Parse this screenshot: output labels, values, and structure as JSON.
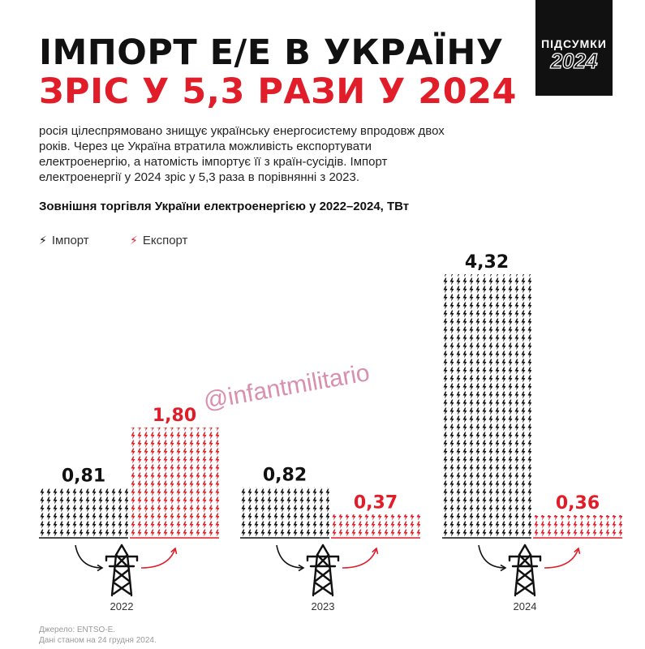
{
  "header": {
    "title_line1": "ІМПОРТ Е/Е В УКРАЇНУ",
    "title_line2": "ЗРІС У 5,3 РАЗИ У 2024",
    "badge_top": "ПІДСУМКИ",
    "badge_year": "2024"
  },
  "intro": "росія цілеспрямовано знищує українську енергосистему впродовж двох років. Через це Україна втратила можливість експортувати електроенергію, а натомість імпортує її з країн-сусідів. Імпорт електроенергії у 2024 зріс у 5,3 раза в порівнянні з 2023.",
  "colors": {
    "import": "#111111",
    "export": "#e11d2a"
  },
  "watermark": "@infantmilitario",
  "source": {
    "line1": "Джерело: ENTSO-E.",
    "line2": "Дані станом на 24 грудня 2024."
  },
  "chart_data": {
    "type": "bar",
    "title": "Зовнішня торгівля України електроенергією у 2022–2024, ТВт",
    "categories": [
      "2022",
      "2023",
      "2024"
    ],
    "series": [
      {
        "name": "Імпорт",
        "values": [
          0.81,
          0.82,
          4.32
        ],
        "labels": [
          "0,81",
          "0,82",
          "4,32"
        ]
      },
      {
        "name": "Експорт",
        "values": [
          1.8,
          0.37,
          0.36
        ],
        "labels": [
          "1,80",
          "0,37",
          "0,36"
        ]
      }
    ],
    "legend": "top-left",
    "icon": "lightning-bolt-icon",
    "category_icon": "power-pylon-icon"
  }
}
